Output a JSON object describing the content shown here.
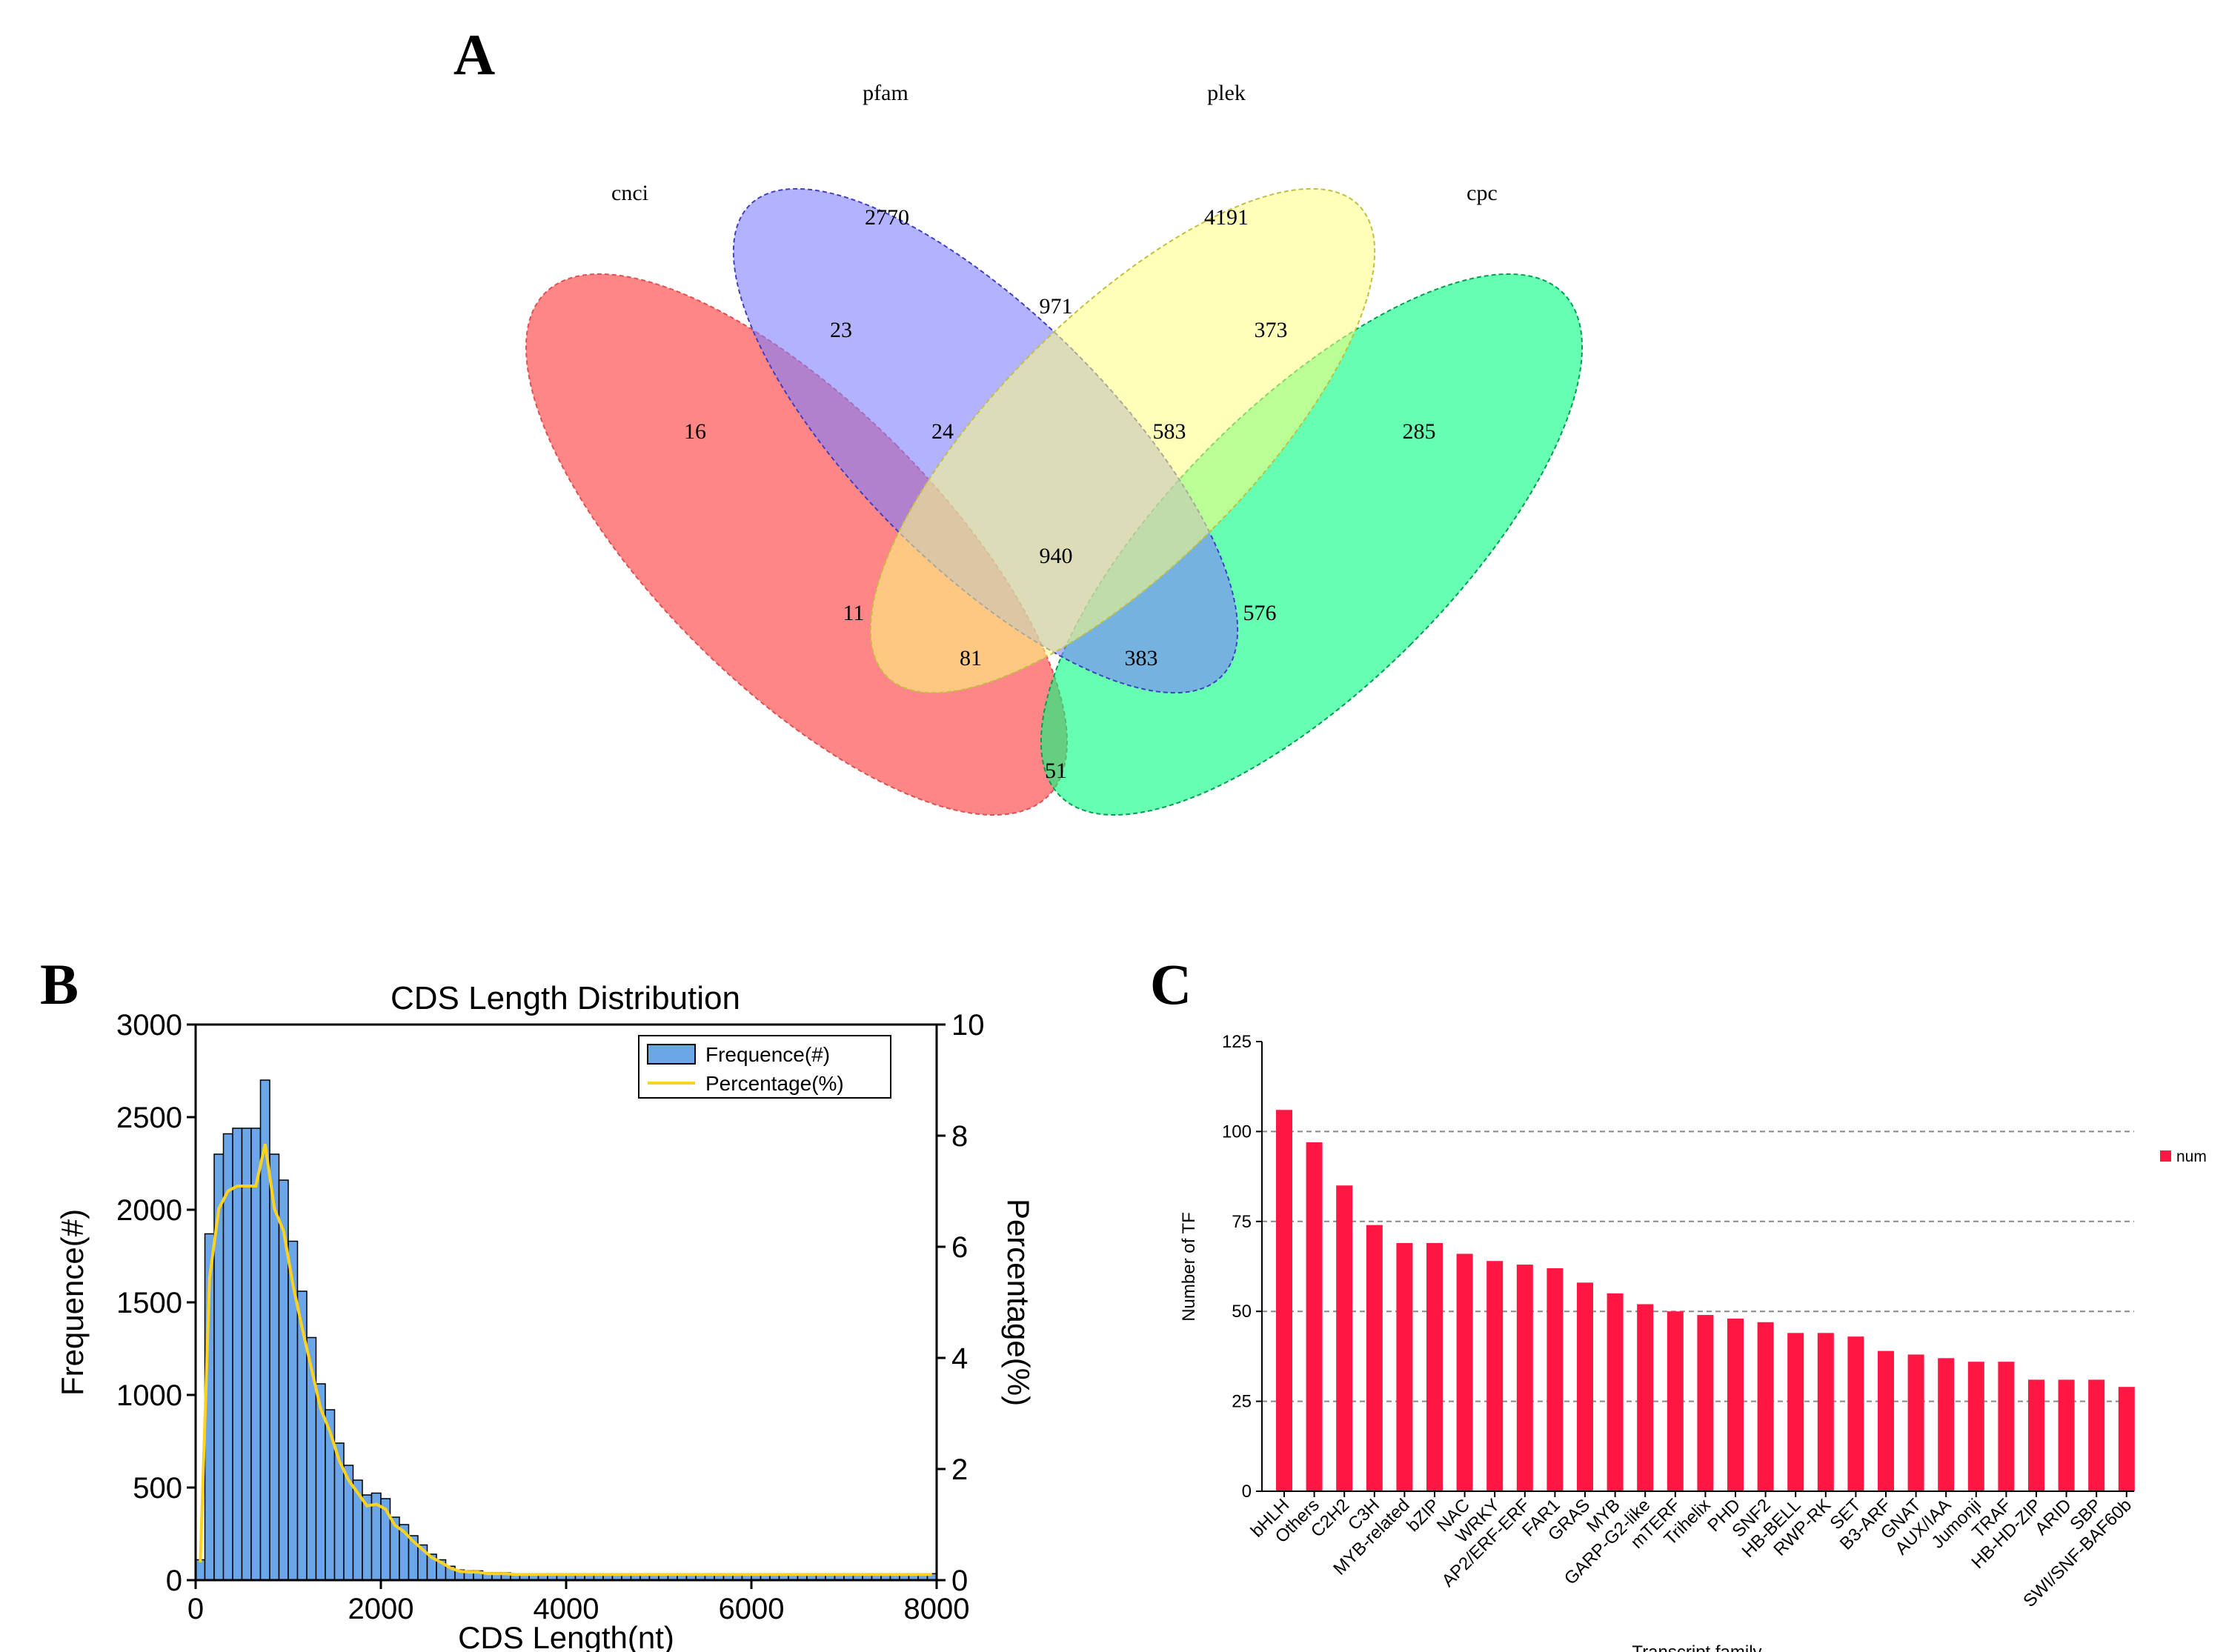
{
  "panel_letters": {
    "a": "A",
    "b": "B",
    "c": "C"
  },
  "chart_data": [
    {
      "type": "venn",
      "sets": [
        "cnci",
        "pfam",
        "plek",
        "cpc"
      ],
      "colors": {
        "cnci": "#ff7f7f",
        "pfam": "#7f7fff",
        "plek": "#ffff7f",
        "cpc": "#00ff7f"
      },
      "regions": [
        {
          "sets": [
            "cnci"
          ],
          "value": 16
        },
        {
          "sets": [
            "pfam"
          ],
          "value": 2770
        },
        {
          "sets": [
            "plek"
          ],
          "value": 4191
        },
        {
          "sets": [
            "cpc"
          ],
          "value": 285
        },
        {
          "sets": [
            "cnci",
            "pfam"
          ],
          "value": 23
        },
        {
          "sets": [
            "pfam",
            "plek"
          ],
          "value": 971
        },
        {
          "sets": [
            "plek",
            "cpc"
          ],
          "value": 373
        },
        {
          "sets": [
            "cnci",
            "plek"
          ],
          "value": 11
        },
        {
          "sets": [
            "pfam",
            "cpc"
          ],
          "value": 576
        },
        {
          "sets": [
            "cnci",
            "cpc"
          ],
          "value": 51
        },
        {
          "sets": [
            "cnci",
            "pfam",
            "plek"
          ],
          "value": 24
        },
        {
          "sets": [
            "pfam",
            "plek",
            "cpc"
          ],
          "value": 583
        },
        {
          "sets": [
            "cnci",
            "plek",
            "cpc"
          ],
          "value": 81
        },
        {
          "sets": [
            "cnci",
            "pfam",
            "cpc"
          ],
          "value": 383
        },
        {
          "sets": [
            "cnci",
            "pfam",
            "plek",
            "cpc"
          ],
          "value": 940
        }
      ]
    },
    {
      "type": "bar",
      "title": "CDS Length Distribution",
      "xlabel": "CDS Length(nt)",
      "ylabel": "Frequence(#)",
      "y2label": "Percentage(%)",
      "xlim": [
        0,
        8000
      ],
      "ylim": [
        0,
        3000
      ],
      "y2lim": [
        0,
        10
      ],
      "xticks": [
        "0",
        "2000",
        "4000",
        "6000",
        "8000"
      ],
      "yticks": [
        "0",
        "500",
        "1000",
        "1500",
        "2000",
        "2500",
        "3000"
      ],
      "y2ticks": [
        "0",
        "2",
        "4",
        "6",
        "8",
        "10"
      ],
      "bin_width": 100,
      "bin_start": 0,
      "values": [
        110,
        1870,
        2300,
        2410,
        2440,
        2440,
        2440,
        2700,
        2300,
        2160,
        1830,
        1560,
        1310,
        1060,
        920,
        740,
        620,
        540,
        460,
        470,
        440,
        340,
        300,
        240,
        190,
        140,
        110,
        75,
        55,
        50,
        50,
        40,
        40,
        40,
        35,
        35,
        35,
        35,
        35,
        35,
        35,
        35,
        35,
        35,
        35,
        35,
        35,
        35,
        35,
        35,
        35,
        35,
        35,
        35,
        35,
        35,
        35,
        35,
        35,
        35,
        35,
        35,
        35,
        35,
        35,
        35,
        35,
        35,
        35,
        35,
        35,
        35,
        35,
        35,
        35,
        35,
        35,
        35,
        35,
        35
      ],
      "series": [
        {
          "name": "Frequence(#)",
          "color": "#6aa6e8"
        },
        {
          "name": "Percentage(%)",
          "color": "#ffd21e"
        }
      ],
      "legend_position": "top-right"
    },
    {
      "type": "bar",
      "xlabel": "Transcript family",
      "ylabel": "Number of TF",
      "ylim": [
        0,
        125
      ],
      "yticks": [
        "0",
        "25",
        "50",
        "75",
        "100",
        "125"
      ],
      "legend": "num",
      "color": "#ff1744",
      "categories": [
        "bHLH",
        "Others",
        "C2H2",
        "C3H",
        "MYB-related",
        "bZIP",
        "NAC",
        "WRKY",
        "AP2/ERF-ERF",
        "FAR1",
        "GRAS",
        "MYB",
        "GARP-G2-like",
        "mTERF",
        "Trihelix",
        "PHD",
        "SNF2",
        "HB-BELL",
        "RWP-RK",
        "SET",
        "B3-ARF",
        "GNAT",
        "AUX/IAA",
        "Jumonji",
        "TRAF",
        "HB-HD-ZIP",
        "ARID",
        "SBP",
        "SWI/SNF-BAF60b"
      ],
      "values": [
        106,
        97,
        85,
        74,
        69,
        69,
        66,
        64,
        63,
        62,
        58,
        55,
        52,
        50,
        49,
        48,
        47,
        44,
        44,
        43,
        39,
        38,
        37,
        36,
        36,
        31,
        31,
        31,
        29
      ]
    }
  ]
}
